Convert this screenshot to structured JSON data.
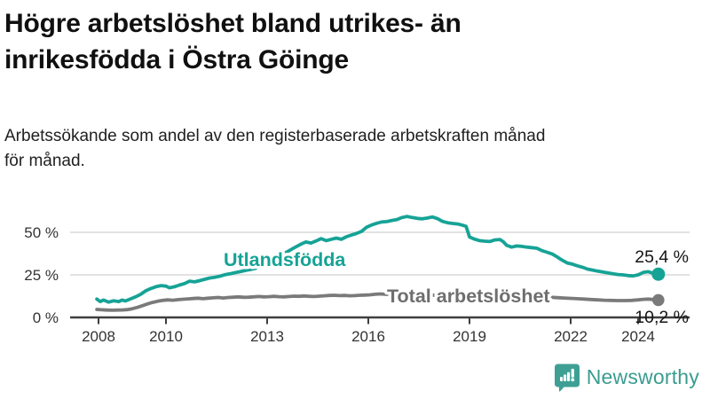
{
  "header": {
    "title_lines": [
      "Högre arbetslöshet bland utrikes- än",
      "inrikesfödda i Östra Göinge"
    ],
    "subtitle_lines": [
      "Arbetssökande som andel av den registerbaserade arbetskraften månad",
      "för månad."
    ]
  },
  "colors": {
    "accent_teal": "#16A396",
    "series_gray": "#7A7A7A",
    "label_gray": "#6E6E6E",
    "axis": "#3F3F3F",
    "tick_text": "#333333",
    "gridline": "#D9D9D9",
    "value_text": "#151515",
    "brand_teal": "#3EA094",
    "background": "#FFFFFF"
  },
  "footer": {
    "brand": "Newsworthy",
    "logo_icon": "bar-chart-speech-bubble"
  },
  "chart_data": {
    "type": "line",
    "title": "Högre arbetslöshet bland utrikes- än inrikesfödda i Östra Göinge",
    "subtitle": "Arbetssökande som andel av den registerbaserade arbetskraften månad för månad.",
    "xlabel": "",
    "ylabel": "",
    "grid": "horizontal",
    "legend_position": "inline-labels",
    "xlim": [
      2007.6,
      2025.5
    ],
    "ylim": [
      0,
      62
    ],
    "x_ticks": [
      {
        "value": 2008,
        "label": "2008"
      },
      {
        "value": 2010,
        "label": "2010"
      },
      {
        "value": 2013,
        "label": "2013"
      },
      {
        "value": 2016,
        "label": "2016"
      },
      {
        "value": 2019,
        "label": "2019"
      },
      {
        "value": 2022,
        "label": "2022"
      },
      {
        "value": 2024,
        "label": "2024"
      }
    ],
    "y_ticks": [
      {
        "value": 0,
        "label": "0 %"
      },
      {
        "value": 25,
        "label": "25 %"
      },
      {
        "value": 50,
        "label": "50 %"
      }
    ],
    "series": [
      {
        "name": "Utlandsfödda",
        "color": "#16A396",
        "end_label": "25,4 %",
        "end_value": 25.4,
        "points": [
          [
            2007.95,
            10.8
          ],
          [
            2008.05,
            9.3
          ],
          [
            2008.15,
            10.2
          ],
          [
            2008.3,
            9.0
          ],
          [
            2008.45,
            9.8
          ],
          [
            2008.6,
            9.3
          ],
          [
            2008.7,
            10.2
          ],
          [
            2008.8,
            9.7
          ],
          [
            2008.95,
            10.9
          ],
          [
            2009.1,
            12.1
          ],
          [
            2009.25,
            13.6
          ],
          [
            2009.4,
            15.6
          ],
          [
            2009.55,
            17.0
          ],
          [
            2009.7,
            18.0
          ],
          [
            2009.85,
            18.7
          ],
          [
            2010.0,
            18.4
          ],
          [
            2010.1,
            17.4
          ],
          [
            2010.25,
            18.0
          ],
          [
            2010.4,
            19.0
          ],
          [
            2010.55,
            19.9
          ],
          [
            2010.7,
            21.3
          ],
          [
            2010.85,
            20.9
          ],
          [
            2011.0,
            21.6
          ],
          [
            2011.15,
            22.4
          ],
          [
            2011.3,
            23.2
          ],
          [
            2011.45,
            23.6
          ],
          [
            2011.6,
            24.2
          ],
          [
            2011.75,
            25.1
          ],
          [
            2011.9,
            25.6
          ],
          [
            2012.05,
            26.3
          ],
          [
            2012.2,
            26.9
          ],
          [
            2012.35,
            27.6
          ],
          [
            2012.5,
            28.1
          ],
          [
            2012.65,
            28.8
          ],
          [
            2012.8,
            30.0
          ],
          [
            2013.0,
            32.0
          ],
          [
            2013.2,
            34.2
          ],
          [
            2013.4,
            36.3
          ],
          [
            2013.6,
            38.6
          ],
          [
            2013.8,
            40.9
          ],
          [
            2014.0,
            43.0
          ],
          [
            2014.15,
            44.3
          ],
          [
            2014.3,
            43.7
          ],
          [
            2014.45,
            44.9
          ],
          [
            2014.6,
            46.3
          ],
          [
            2014.75,
            45.1
          ],
          [
            2014.9,
            45.9
          ],
          [
            2015.05,
            46.6
          ],
          [
            2015.2,
            45.9
          ],
          [
            2015.35,
            47.4
          ],
          [
            2015.5,
            48.4
          ],
          [
            2015.65,
            49.3
          ],
          [
            2015.8,
            50.5
          ],
          [
            2015.95,
            53.0
          ],
          [
            2016.1,
            54.3
          ],
          [
            2016.25,
            55.3
          ],
          [
            2016.4,
            56.1
          ],
          [
            2016.55,
            56.3
          ],
          [
            2016.7,
            57.0
          ],
          [
            2016.85,
            57.5
          ],
          [
            2017.0,
            58.7
          ],
          [
            2017.15,
            59.3
          ],
          [
            2017.3,
            58.7
          ],
          [
            2017.45,
            58.2
          ],
          [
            2017.6,
            57.9
          ],
          [
            2017.75,
            58.4
          ],
          [
            2017.9,
            59.0
          ],
          [
            2018.05,
            58.0
          ],
          [
            2018.2,
            56.4
          ],
          [
            2018.35,
            55.6
          ],
          [
            2018.5,
            55.2
          ],
          [
            2018.65,
            54.9
          ],
          [
            2018.8,
            54.1
          ],
          [
            2018.9,
            53.5
          ],
          [
            2019.0,
            47.3
          ],
          [
            2019.15,
            46.0
          ],
          [
            2019.3,
            45.1
          ],
          [
            2019.45,
            44.8
          ],
          [
            2019.6,
            44.6
          ],
          [
            2019.75,
            45.5
          ],
          [
            2019.9,
            45.8
          ],
          [
            2020.0,
            44.5
          ],
          [
            2020.1,
            42.4
          ],
          [
            2020.25,
            41.3
          ],
          [
            2020.4,
            42.0
          ],
          [
            2020.55,
            41.7
          ],
          [
            2020.7,
            41.3
          ],
          [
            2020.85,
            41.0
          ],
          [
            2021.0,
            40.6
          ],
          [
            2021.15,
            39.2
          ],
          [
            2021.3,
            38.3
          ],
          [
            2021.45,
            37.3
          ],
          [
            2021.6,
            35.5
          ],
          [
            2021.75,
            33.6
          ],
          [
            2021.9,
            32.0
          ],
          [
            2022.05,
            31.3
          ],
          [
            2022.2,
            30.3
          ],
          [
            2022.35,
            29.5
          ],
          [
            2022.5,
            28.4
          ],
          [
            2022.65,
            27.8
          ],
          [
            2022.8,
            27.2
          ],
          [
            2022.95,
            26.7
          ],
          [
            2023.1,
            26.2
          ],
          [
            2023.25,
            25.6
          ],
          [
            2023.4,
            25.2
          ],
          [
            2023.55,
            25.0
          ],
          [
            2023.7,
            24.6
          ],
          [
            2023.85,
            24.4
          ],
          [
            2024.0,
            25.0
          ],
          [
            2024.15,
            26.4
          ],
          [
            2024.3,
            26.9
          ],
          [
            2024.45,
            25.9
          ],
          [
            2024.6,
            25.4
          ]
        ]
      },
      {
        "name": "Total arbetslöshet",
        "color": "#7A7A7A",
        "end_label": "10,2 %",
        "end_value": 10.2,
        "points": [
          [
            2007.95,
            4.7
          ],
          [
            2008.1,
            4.5
          ],
          [
            2008.25,
            4.3
          ],
          [
            2008.4,
            4.2
          ],
          [
            2008.55,
            4.3
          ],
          [
            2008.7,
            4.4
          ],
          [
            2008.85,
            4.6
          ],
          [
            2009.0,
            5.1
          ],
          [
            2009.15,
            5.9
          ],
          [
            2009.3,
            6.9
          ],
          [
            2009.45,
            7.9
          ],
          [
            2009.6,
            8.8
          ],
          [
            2009.75,
            9.5
          ],
          [
            2009.9,
            10.0
          ],
          [
            2010.05,
            10.3
          ],
          [
            2010.2,
            10.1
          ],
          [
            2010.35,
            10.4
          ],
          [
            2010.5,
            10.7
          ],
          [
            2010.65,
            10.9
          ],
          [
            2010.8,
            11.1
          ],
          [
            2010.95,
            11.3
          ],
          [
            2011.1,
            11.0
          ],
          [
            2011.25,
            11.3
          ],
          [
            2011.4,
            11.5
          ],
          [
            2011.55,
            11.7
          ],
          [
            2011.7,
            11.4
          ],
          [
            2011.85,
            11.7
          ],
          [
            2012.0,
            11.9
          ],
          [
            2012.15,
            12.1
          ],
          [
            2012.3,
            11.8
          ],
          [
            2012.45,
            11.9
          ],
          [
            2012.6,
            12.1
          ],
          [
            2012.75,
            12.3
          ],
          [
            2012.9,
            12.1
          ],
          [
            2013.05,
            12.2
          ],
          [
            2013.2,
            12.4
          ],
          [
            2013.35,
            12.2
          ],
          [
            2013.5,
            12.1
          ],
          [
            2013.65,
            12.3
          ],
          [
            2013.8,
            12.5
          ],
          [
            2013.95,
            12.4
          ],
          [
            2014.1,
            12.6
          ],
          [
            2014.25,
            12.4
          ],
          [
            2014.4,
            12.3
          ],
          [
            2014.55,
            12.5
          ],
          [
            2014.7,
            12.7
          ],
          [
            2014.85,
            12.9
          ],
          [
            2015.0,
            13.0
          ],
          [
            2015.15,
            12.8
          ],
          [
            2015.3,
            12.9
          ],
          [
            2015.45,
            12.7
          ],
          [
            2015.6,
            12.8
          ],
          [
            2015.75,
            13.0
          ],
          [
            2015.9,
            13.1
          ],
          [
            2016.05,
            13.3
          ],
          [
            2016.2,
            13.6
          ],
          [
            2016.35,
            13.8
          ],
          [
            2016.5,
            13.6
          ],
          [
            2016.65,
            13.5
          ],
          [
            2017.0,
            13.6
          ],
          [
            2017.4,
            13.3
          ],
          [
            2017.8,
            13.1
          ],
          [
            2018.2,
            12.9
          ],
          [
            2018.6,
            12.7
          ],
          [
            2019.0,
            12.5
          ],
          [
            2019.4,
            12.6
          ],
          [
            2019.8,
            12.7
          ],
          [
            2020.1,
            13.0
          ],
          [
            2020.5,
            12.8
          ],
          [
            2020.9,
            12.4
          ],
          [
            2021.3,
            12.0
          ],
          [
            2021.6,
            11.6
          ],
          [
            2021.8,
            11.4
          ],
          [
            2022.0,
            11.2
          ],
          [
            2022.2,
            11.0
          ],
          [
            2022.4,
            10.8
          ],
          [
            2022.6,
            10.5
          ],
          [
            2022.8,
            10.3
          ],
          [
            2023.0,
            10.1
          ],
          [
            2023.2,
            10.0
          ],
          [
            2023.4,
            9.9
          ],
          [
            2023.6,
            9.9
          ],
          [
            2023.8,
            10.0
          ],
          [
            2024.0,
            10.3
          ],
          [
            2024.15,
            10.6
          ],
          [
            2024.3,
            10.8
          ],
          [
            2024.45,
            10.5
          ],
          [
            2024.6,
            10.2
          ]
        ]
      }
    ]
  }
}
